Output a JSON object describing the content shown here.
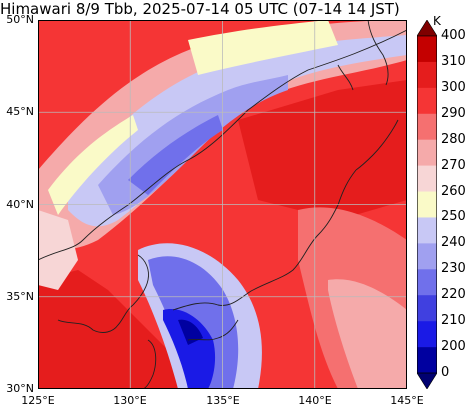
{
  "title": "Himawari 8/9 Tbb, 2025-07-14 05 UTC (07-14 14 JST)",
  "map": {
    "projection": "lat-lon",
    "lon_range": [
      125,
      145
    ],
    "lat_range": [
      30,
      50
    ],
    "graticule_interval_deg": 5,
    "lat_labels": [
      "50°N",
      "45°N",
      "40°N",
      "35°N",
      "30°N"
    ],
    "lon_labels": [
      "125°E",
      "130°E",
      "135°E",
      "140°E",
      "145°E"
    ],
    "grid": true,
    "coastlines": true
  },
  "colorbar": {
    "unit": "K",
    "orientation": "vertical",
    "extend": "both",
    "levels": [
      "400",
      "310",
      "300",
      "290",
      "280",
      "270",
      "260",
      "250",
      "240",
      "230",
      "220",
      "210",
      "200",
      "0"
    ],
    "colors": [
      "#7f0000",
      "#c40000",
      "#e51d1d",
      "#f53535",
      "#f57070",
      "#f5aaaa",
      "#f7d6d6",
      "#fafac8",
      "#c8c8f5",
      "#a0a0f0",
      "#7070eb",
      "#4040e0",
      "#1a1ae6",
      "#0000a0",
      "#000070"
    ]
  }
}
